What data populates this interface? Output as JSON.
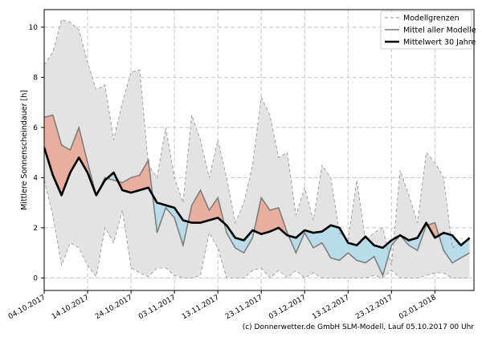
{
  "chart_data": {
    "type": "area",
    "title": "",
    "xlabel": "",
    "ylabel": "Mittlere Sonnenscheindauer [h]",
    "ylim": [
      -0.5,
      10.7
    ],
    "xlim": [
      "2017-10-04",
      "2018-01-11"
    ],
    "yticks": [
      0,
      2,
      4,
      6,
      8,
      10
    ],
    "xticks": [
      {
        "date": "2017-10-04",
        "label": "04.10.2017"
      },
      {
        "date": "2017-10-14",
        "label": "14.10.2017"
      },
      {
        "date": "2017-10-24",
        "label": "24.10.2017"
      },
      {
        "date": "2017-11-03",
        "label": "03.11.2017"
      },
      {
        "date": "2017-11-13",
        "label": "13.11.2017"
      },
      {
        "date": "2017-11-23",
        "label": "23.11.2017"
      },
      {
        "date": "2017-12-03",
        "label": "03.12.2017"
      },
      {
        "date": "2017-12-13",
        "label": "13.12.2017"
      },
      {
        "date": "2017-12-23",
        "label": "23.12.2017"
      },
      {
        "date": "2018-01-02",
        "label": "02.01.2018"
      }
    ],
    "grid": true,
    "legend_position": "top-right",
    "legend": [
      "Modellgrenzen",
      "Mittel aller Modelle",
      "Mittelwert 30 Jahre"
    ],
    "x": [
      "2017-10-04",
      "2017-10-06",
      "2017-10-08",
      "2017-10-10",
      "2017-10-12",
      "2017-10-14",
      "2017-10-16",
      "2017-10-18",
      "2017-10-20",
      "2017-10-22",
      "2017-10-24",
      "2017-10-26",
      "2017-10-28",
      "2017-10-30",
      "2017-11-01",
      "2017-11-03",
      "2017-11-05",
      "2017-11-07",
      "2017-11-09",
      "2017-11-11",
      "2017-11-13",
      "2017-11-15",
      "2017-11-17",
      "2017-11-19",
      "2017-11-21",
      "2017-11-23",
      "2017-11-25",
      "2017-11-27",
      "2017-11-29",
      "2017-12-01",
      "2017-12-03",
      "2017-12-05",
      "2017-12-07",
      "2017-12-09",
      "2017-12-11",
      "2017-12-13",
      "2017-12-15",
      "2017-12-17",
      "2017-12-19",
      "2017-12-21",
      "2017-12-23",
      "2017-12-25",
      "2017-12-27",
      "2017-12-29",
      "2017-12-31",
      "2018-01-02",
      "2018-01-04",
      "2018-01-06",
      "2018-01-08",
      "2018-01-10"
    ],
    "series": [
      {
        "name": "Modellgrenzen",
        "role": "upper",
        "values": [
          8.5,
          9.0,
          10.3,
          10.2,
          9.9,
          8.6,
          7.5,
          7.7,
          5.5,
          7.0,
          8.2,
          8.3,
          4.5,
          4.0,
          6.0,
          4.0,
          3.0,
          6.5,
          5.5,
          4.0,
          5.5,
          4.0,
          2.2,
          3.0,
          4.5,
          7.2,
          6.5,
          4.8,
          5.0,
          2.5,
          3.6,
          2.3,
          4.5,
          4.0,
          1.8,
          1.5,
          3.9,
          1.5,
          1.8,
          2.0,
          0.5,
          4.3,
          3.3,
          2.2,
          5.0,
          4.6,
          4.0,
          1.2,
          1.4,
          1.5
        ]
      },
      {
        "name": "Modellgrenzen",
        "role": "lower",
        "values": [
          3.9,
          2.5,
          0.5,
          1.4,
          1.2,
          0.5,
          0.05,
          2.0,
          1.4,
          2.7,
          0.4,
          0.2,
          0.05,
          0.4,
          0.4,
          0.1,
          0,
          0,
          0.1,
          1.8,
          1.2,
          0,
          0,
          0,
          0.3,
          0.4,
          0,
          0.3,
          0,
          0.3,
          0,
          0.2,
          0,
          0,
          0,
          0,
          0,
          0,
          0.1,
          0,
          0.3,
          0,
          0,
          0,
          0.1,
          0.2,
          0.2,
          0,
          0,
          0
        ]
      },
      {
        "name": "Mittel aller Modelle",
        "values": [
          6.4,
          6.5,
          5.3,
          5.1,
          6.0,
          4.6,
          3.3,
          4.0,
          3.9,
          3.8,
          4.0,
          4.1,
          4.7,
          1.8,
          2.8,
          2.4,
          1.3,
          2.9,
          3.5,
          2.7,
          3.2,
          1.8,
          1.2,
          1.0,
          1.6,
          3.2,
          2.7,
          2.8,
          1.8,
          1.0,
          1.8,
          1.2,
          1.4,
          0.8,
          0.7,
          1.0,
          0.7,
          0.6,
          0.85,
          0.1,
          1.3,
          1.7,
          1.3,
          1.1,
          2.1,
          2.2,
          1.1,
          0.6,
          0.8,
          1.0
        ]
      },
      {
        "name": "Mittelwert 30 Jahre",
        "values": [
          5.2,
          4.1,
          3.3,
          4.2,
          4.8,
          4.2,
          3.3,
          3.9,
          4.2,
          3.5,
          3.4,
          3.5,
          3.6,
          3.0,
          2.9,
          2.8,
          2.3,
          2.2,
          2.2,
          2.3,
          2.4,
          2.1,
          1.6,
          1.5,
          1.9,
          1.75,
          1.85,
          2.0,
          1.7,
          1.6,
          1.9,
          1.8,
          1.85,
          2.1,
          2.0,
          1.4,
          1.3,
          1.65,
          1.3,
          1.2,
          1.5,
          1.7,
          1.5,
          1.6,
          2.2,
          1.6,
          1.8,
          1.7,
          1.3,
          1.6
        ]
      }
    ],
    "colors": {
      "band": "#e3e3e3",
      "band_edge": "#9a9a9a",
      "model_mean": "#7a7a7a",
      "climate_mean": "#000000",
      "above": "#e8ae9e",
      "below": "#b9dcea"
    }
  },
  "footer": "(c) Donnerwetter.de GmbH SLM-Modell, Lauf 05.10.2017 00 Uhr"
}
